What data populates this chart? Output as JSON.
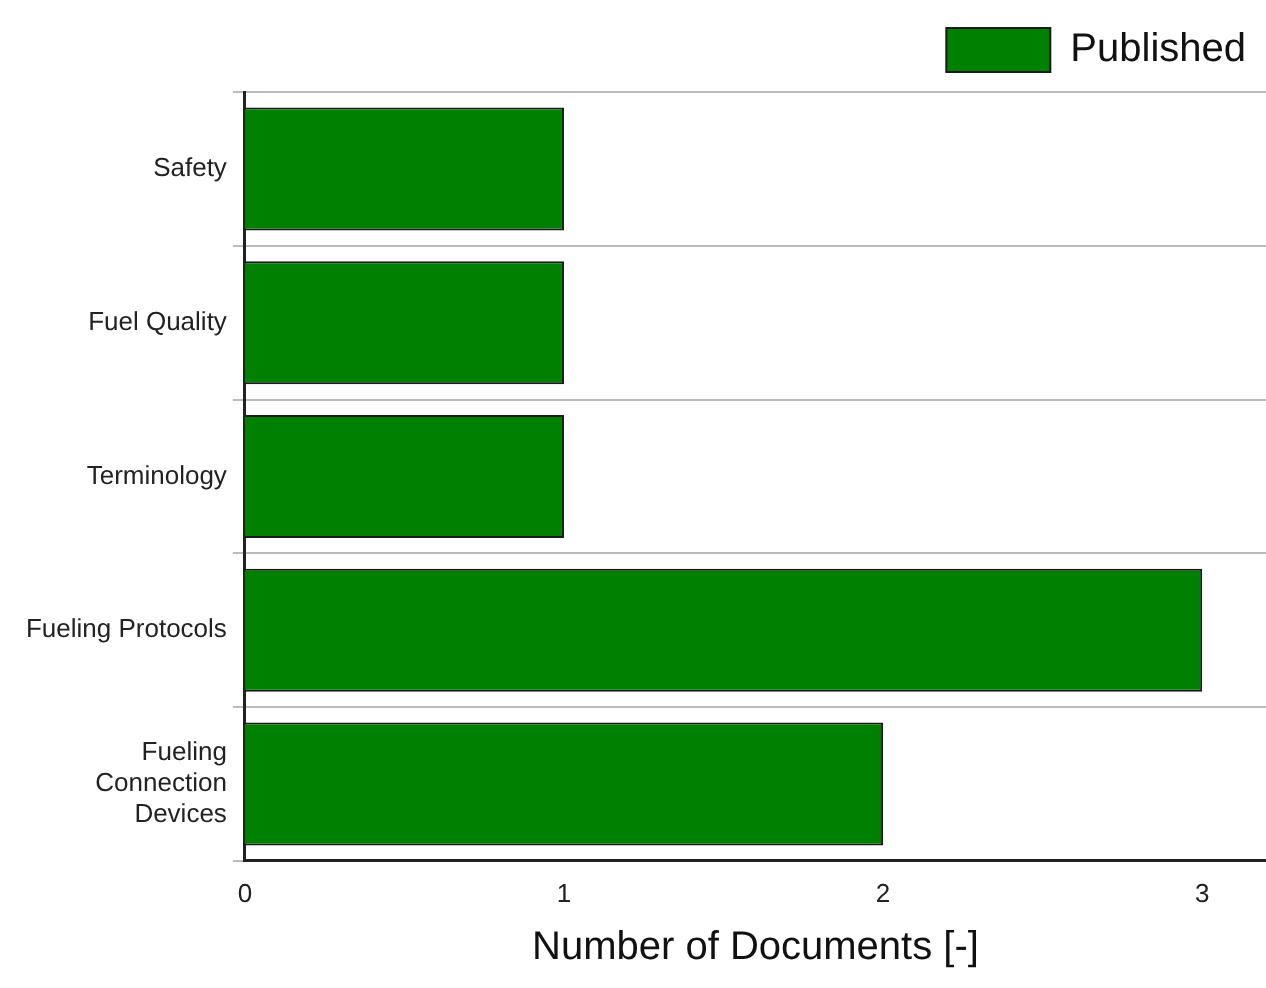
{
  "chart_data": {
    "type": "bar",
    "orientation": "horizontal",
    "xlabel": "Number of Documents [-]",
    "categories": [
      "Safety",
      "Fuel Quality",
      "Terminology",
      "Fueling Protocols",
      "Fueling Connection Devices"
    ],
    "series": [
      {
        "name": "Published",
        "color": "#008000",
        "values": [
          1,
          1,
          1,
          3,
          2
        ]
      }
    ],
    "xlim": [
      0,
      3.2
    ],
    "xticks": [
      0,
      1,
      2,
      3
    ],
    "grid": "y",
    "legend": "top right"
  }
}
